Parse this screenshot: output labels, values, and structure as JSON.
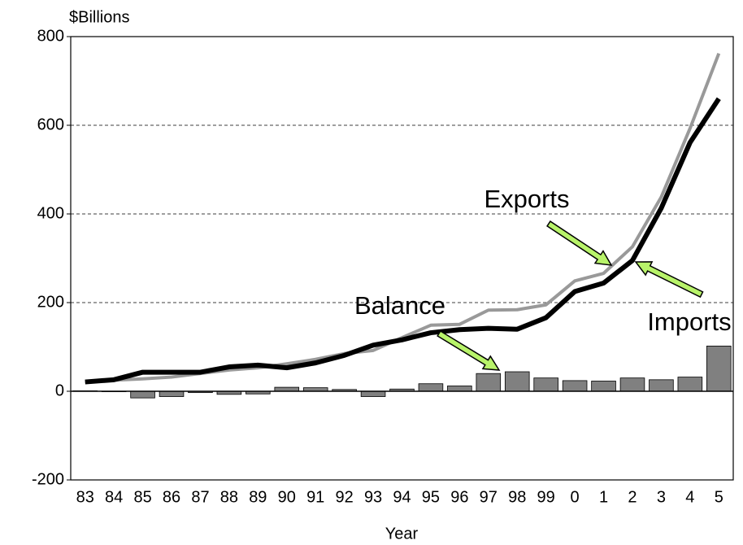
{
  "chart_data": {
    "type": "combo",
    "y_unit": "$Billions",
    "x_label": "Year",
    "categories": [
      "83",
      "84",
      "85",
      "86",
      "87",
      "88",
      "89",
      "90",
      "91",
      "92",
      "93",
      "94",
      "95",
      "96",
      "97",
      "98",
      "99",
      "0",
      "1",
      "2",
      "3",
      "4",
      "5"
    ],
    "series": [
      {
        "name": "Exports",
        "type": "line",
        "color": "#999999",
        "values": [
          22,
          25,
          28,
          32,
          40,
          48,
          53,
          62,
          72,
          85,
          92,
          121,
          149,
          151,
          183,
          184,
          195,
          249,
          266,
          326,
          438,
          593,
          762
        ]
      },
      {
        "name": "Imports",
        "type": "line",
        "color": "#000000",
        "values": [
          21,
          26,
          43,
          43,
          43,
          55,
          59,
          53,
          64,
          81,
          104,
          116,
          132,
          139,
          142,
          140,
          166,
          225,
          244,
          295,
          413,
          561,
          660
        ]
      },
      {
        "name": "Balance",
        "type": "bar",
        "color": "#808080",
        "values": [
          1,
          -1,
          -15,
          -12,
          -3,
          -7,
          -6,
          9,
          8,
          4,
          -12,
          5,
          17,
          12,
          40,
          44,
          30,
          24,
          23,
          30,
          26,
          32,
          102
        ]
      }
    ],
    "ylim": [
      -200,
      800
    ],
    "yticks": [
      -200,
      0,
      200,
      400,
      600,
      800
    ],
    "grid": true
  }
}
